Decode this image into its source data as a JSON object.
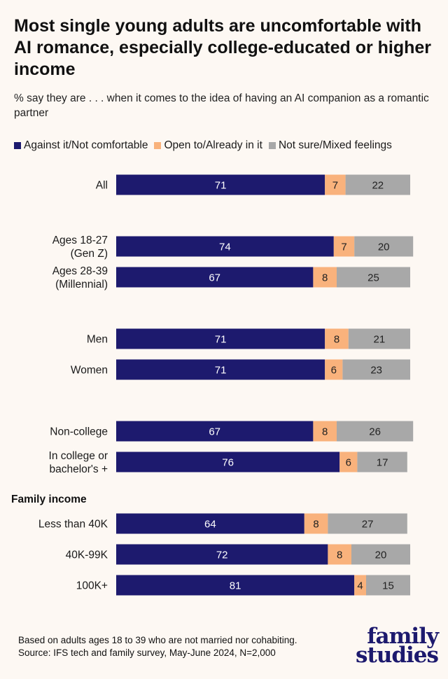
{
  "chart_data": {
    "type": "bar",
    "orientation": "horizontal",
    "stacked": true,
    "title": "Most single young adults are uncomfortable with AI romance, especially college-educated or higher income",
    "subtitle": "% say they are . . . when it comes to the idea of having an AI companion as a romantic partner",
    "legend_position": "top-left",
    "series": [
      {
        "name": "Against it/Not comfortable",
        "color": "#1d1a6e",
        "label_color": "#ffffff"
      },
      {
        "name": "Open to/Already in it",
        "color": "#f9b27c",
        "label_color": "#222222"
      },
      {
        "name": "Not sure/Mixed feelings",
        "color": "#a8a8a8",
        "label_color": "#222222"
      }
    ],
    "rows": [
      {
        "label": [
          "All"
        ],
        "values": [
          71,
          7,
          22
        ]
      },
      {
        "label": [
          "Ages 18-27",
          "(Gen Z)"
        ],
        "values": [
          74,
          7,
          20
        ]
      },
      {
        "label": [
          "Ages 28-39",
          "(Millennial)"
        ],
        "values": [
          67,
          8,
          25
        ]
      },
      {
        "label": [
          "Men"
        ],
        "values": [
          71,
          8,
          21
        ]
      },
      {
        "label": [
          "Women"
        ],
        "values": [
          71,
          6,
          23
        ]
      },
      {
        "label": [
          "Non-college"
        ],
        "values": [
          67,
          8,
          26
        ]
      },
      {
        "label": [
          "In college or",
          "bachelor's +"
        ],
        "values": [
          76,
          6,
          17
        ]
      },
      {
        "label": [
          "Less than 40K"
        ],
        "values": [
          64,
          8,
          27
        ]
      },
      {
        "label": [
          "40K-99K"
        ],
        "values": [
          72,
          8,
          20
        ]
      },
      {
        "label": [
          "100K+"
        ],
        "values": [
          81,
          4,
          15
        ]
      }
    ],
    "group_headers": [
      {
        "before_row": 7,
        "text": "Family income"
      }
    ],
    "xlim": [
      0,
      100
    ]
  },
  "footnote": {
    "line1": "Based on adults ages 18 to 39 who are not married nor cohabiting.",
    "line2": "Source: IFS tech and family survey, May-June 2024, N=2,000"
  },
  "logo": {
    "line1": "family",
    "line2": "studies"
  }
}
